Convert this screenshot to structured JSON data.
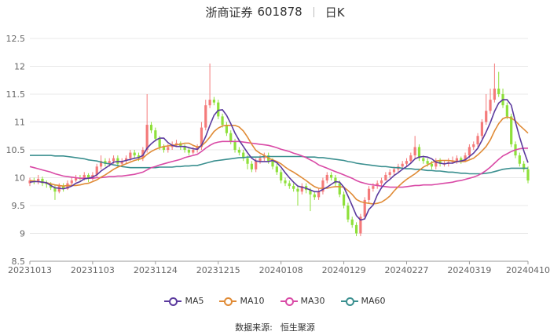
{
  "header": {
    "name": "浙商证券",
    "code": "601878",
    "period": "日K"
  },
  "legend": [
    {
      "label": "MA5",
      "color": "#5b3a9e"
    },
    {
      "label": "MA10",
      "color": "#e08b36"
    },
    {
      "label": "MA30",
      "color": "#d94aa6"
    },
    {
      "label": "MA60",
      "color": "#3a8f8f"
    }
  ],
  "source": {
    "label": "数据来源:",
    "value": "恒生聚源"
  },
  "colors": {
    "up": "#f47a7a",
    "down": "#8ee03a",
    "grid": "#e8e8e8",
    "axis": "#666666"
  },
  "chart_data": {
    "type": "candlestick",
    "ylim": [
      8.5,
      12.5
    ],
    "y_ticks": [
      8.5,
      9,
      9.5,
      10,
      10.5,
      11,
      11.5,
      12,
      12.5
    ],
    "x_ticks": [
      {
        "index": 0,
        "label": "20231013"
      },
      {
        "index": 15,
        "label": "20231103"
      },
      {
        "index": 30,
        "label": "20231124"
      },
      {
        "index": 45,
        "label": "20231215"
      },
      {
        "index": 60,
        "label": "20240108"
      },
      {
        "index": 75,
        "label": "20240129"
      },
      {
        "index": 90,
        "label": "20240227"
      },
      {
        "index": 105,
        "label": "20240319"
      },
      {
        "index": 119,
        "label": "20240410"
      }
    ],
    "num_points": 120,
    "closes": [
      9.95,
      9.92,
      9.98,
      9.9,
      9.88,
      9.82,
      9.75,
      9.85,
      9.8,
      9.9,
      9.95,
      10.0,
      9.98,
      10.05,
      9.98,
      10.05,
      10.2,
      10.3,
      10.25,
      10.3,
      10.35,
      10.25,
      10.3,
      10.35,
      10.45,
      10.4,
      10.35,
      10.5,
      10.95,
      10.85,
      10.7,
      10.55,
      10.5,
      10.55,
      10.6,
      10.62,
      10.55,
      10.5,
      10.45,
      10.5,
      10.55,
      10.9,
      11.3,
      11.4,
      11.35,
      11.1,
      10.95,
      10.8,
      10.65,
      10.5,
      10.45,
      10.35,
      10.25,
      10.15,
      10.3,
      10.35,
      10.4,
      10.3,
      10.2,
      10.1,
      9.95,
      9.9,
      9.85,
      9.8,
      9.75,
      9.85,
      9.78,
      9.7,
      9.65,
      9.75,
      9.95,
      10.05,
      10.0,
      9.9,
      9.7,
      9.5,
      9.25,
      9.15,
      9.0,
      9.3,
      9.6,
      9.8,
      9.85,
      9.9,
      9.95,
      10.05,
      10.1,
      10.15,
      10.2,
      10.25,
      10.3,
      10.4,
      10.55,
      10.35,
      10.3,
      10.25,
      10.2,
      10.3,
      10.25,
      10.25,
      10.28,
      10.3,
      10.35,
      10.3,
      10.4,
      10.55,
      10.6,
      10.75,
      11.0,
      11.2,
      11.4,
      11.6,
      11.5,
      11.3,
      11.1,
      10.6,
      10.4,
      10.25,
      10.15,
      9.95
    ],
    "opens": [
      9.9,
      9.95,
      9.92,
      9.98,
      9.9,
      9.88,
      9.82,
      9.75,
      9.85,
      9.8,
      9.9,
      9.95,
      10.0,
      9.98,
      10.05,
      9.98,
      10.05,
      10.2,
      10.3,
      10.25,
      10.3,
      10.35,
      10.25,
      10.3,
      10.35,
      10.45,
      10.4,
      10.35,
      10.5,
      10.95,
      10.85,
      10.7,
      10.55,
      10.5,
      10.55,
      10.6,
      10.62,
      10.55,
      10.5,
      10.45,
      10.5,
      10.55,
      10.9,
      11.3,
      11.4,
      11.35,
      11.1,
      10.95,
      10.8,
      10.65,
      10.5,
      10.45,
      10.35,
      10.25,
      10.15,
      10.3,
      10.35,
      10.4,
      10.3,
      10.2,
      10.1,
      9.95,
      9.9,
      9.85,
      9.8,
      9.75,
      9.85,
      9.78,
      9.7,
      9.65,
      9.75,
      9.95,
      10.05,
      10.0,
      9.9,
      9.7,
      9.5,
      9.25,
      9.15,
      9.0,
      9.3,
      9.6,
      9.8,
      9.85,
      9.9,
      9.95,
      10.05,
      10.1,
      10.15,
      10.2,
      10.25,
      10.3,
      10.4,
      10.55,
      10.35,
      10.3,
      10.25,
      10.2,
      10.3,
      10.25,
      10.25,
      10.28,
      10.3,
      10.35,
      10.3,
      10.4,
      10.55,
      10.6,
      10.75,
      11.0,
      11.2,
      11.4,
      11.6,
      11.5,
      11.3,
      11.1,
      10.6,
      10.4,
      10.25,
      10.15
    ],
    "highs": [
      10.0,
      10.0,
      10.05,
      10.02,
      9.95,
      9.92,
      9.88,
      9.9,
      9.9,
      9.95,
      10.0,
      10.05,
      10.05,
      10.1,
      10.08,
      10.1,
      10.25,
      10.4,
      10.35,
      10.35,
      10.4,
      10.4,
      10.35,
      10.4,
      10.5,
      10.5,
      10.45,
      10.55,
      11.5,
      11.0,
      10.9,
      10.75,
      10.6,
      10.6,
      10.65,
      10.68,
      10.65,
      10.6,
      10.55,
      10.55,
      10.6,
      11.0,
      11.4,
      12.05,
      11.45,
      11.4,
      11.15,
      11.0,
      10.85,
      10.7,
      10.55,
      10.5,
      10.4,
      10.3,
      10.35,
      10.4,
      10.45,
      10.45,
      10.35,
      10.25,
      10.15,
      10.0,
      9.95,
      9.9,
      9.85,
      9.9,
      9.9,
      9.82,
      9.75,
      9.8,
      10.0,
      10.1,
      10.1,
      10.05,
      9.95,
      9.75,
      9.55,
      9.3,
      9.2,
      9.35,
      9.65,
      9.85,
      9.9,
      9.95,
      10.0,
      10.1,
      10.15,
      10.2,
      10.25,
      10.3,
      10.35,
      10.45,
      10.75,
      10.6,
      10.4,
      10.35,
      10.3,
      10.35,
      10.35,
      10.3,
      10.35,
      10.38,
      10.4,
      10.38,
      10.45,
      10.6,
      10.65,
      10.8,
      11.05,
      11.5,
      11.6,
      12.05,
      11.9,
      11.6,
      11.35,
      11.15,
      10.65,
      10.45,
      10.3,
      10.2
    ],
    "lows": [
      9.85,
      9.88,
      9.88,
      9.85,
      9.82,
      9.78,
      9.6,
      9.72,
      9.75,
      9.78,
      9.85,
      9.92,
      9.95,
      9.95,
      9.92,
      9.95,
      10.0,
      10.15,
      10.2,
      10.2,
      10.25,
      10.2,
      10.2,
      10.25,
      10.3,
      10.35,
      10.3,
      10.3,
      10.45,
      10.8,
      10.65,
      10.5,
      10.45,
      10.45,
      10.5,
      10.55,
      10.5,
      10.45,
      10.4,
      10.42,
      10.45,
      10.5,
      10.85,
      11.25,
      11.3,
      11.05,
      10.9,
      10.75,
      10.6,
      10.45,
      10.4,
      10.3,
      10.15,
      10.1,
      10.1,
      10.25,
      10.3,
      10.25,
      10.15,
      10.05,
      9.9,
      9.85,
      9.8,
      9.75,
      9.5,
      9.7,
      9.72,
      9.4,
      9.6,
      9.6,
      9.7,
      9.9,
      9.95,
      9.85,
      9.65,
      9.45,
      9.2,
      9.1,
      8.95,
      8.95,
      9.25,
      9.55,
      9.75,
      9.8,
      9.85,
      9.95,
      10.0,
      10.05,
      10.1,
      10.15,
      10.2,
      10.25,
      10.35,
      10.3,
      10.25,
      10.2,
      10.15,
      10.15,
      10.2,
      10.2,
      10.2,
      10.25,
      10.25,
      10.25,
      10.3,
      10.35,
      10.5,
      10.55,
      10.7,
      10.95,
      11.15,
      11.35,
      11.45,
      11.25,
      11.05,
      10.55,
      10.35,
      10.2,
      10.1,
      9.9
    ],
    "ma5": [
      9.92,
      9.93,
      9.93,
      9.92,
      9.91,
      9.86,
      9.82,
      9.81,
      9.8,
      9.82,
      9.85,
      9.9,
      9.93,
      9.98,
      9.99,
      10.01,
      10.05,
      10.12,
      10.17,
      10.22,
      10.28,
      10.29,
      10.29,
      10.31,
      10.33,
      10.35,
      10.36,
      10.4,
      10.53,
      10.61,
      10.67,
      10.71,
      10.71,
      10.63,
      10.58,
      10.56,
      10.56,
      10.56,
      10.54,
      10.52,
      10.51,
      10.58,
      10.74,
      10.94,
      11.12,
      11.21,
      11.22,
      11.12,
      10.97,
      10.8,
      10.67,
      10.56,
      10.45,
      10.35,
      10.3,
      10.29,
      10.29,
      10.29,
      10.31,
      10.27,
      10.19,
      10.09,
      10.0,
      9.92,
      9.85,
      9.83,
      9.81,
      9.78,
      9.75,
      9.75,
      9.79,
      9.83,
      9.88,
      9.93,
      9.92,
      9.83,
      9.67,
      9.5,
      9.32,
      9.24,
      9.26,
      9.43,
      9.51,
      9.69,
      9.82,
      9.91,
      9.97,
      10.04,
      10.09,
      10.15,
      10.2,
      10.26,
      10.34,
      10.37,
      10.38,
      10.37,
      10.34,
      10.28,
      10.26,
      10.25,
      10.26,
      10.26,
      10.29,
      10.3,
      10.32,
      10.38,
      10.44,
      10.53,
      10.67,
      10.82,
      10.99,
      11.19,
      11.34,
      11.4,
      11.4,
      11.3,
      11.0,
      10.73,
      10.48,
      10.27
    ],
    "ma10": [
      9.95,
      9.94,
      9.93,
      9.92,
      9.91,
      9.89,
      9.87,
      9.86,
      9.85,
      9.86,
      9.86,
      9.86,
      9.87,
      9.89,
      9.9,
      9.93,
      9.96,
      10.01,
      10.05,
      10.1,
      10.15,
      10.19,
      10.22,
      10.25,
      10.28,
      10.31,
      10.33,
      10.35,
      10.42,
      10.47,
      10.51,
      10.54,
      10.56,
      10.57,
      10.58,
      10.59,
      10.6,
      10.62,
      10.62,
      10.58,
      10.55,
      10.57,
      10.64,
      10.73,
      10.83,
      10.89,
      10.93,
      10.94,
      10.94,
      10.94,
      10.91,
      10.84,
      10.73,
      10.6,
      10.49,
      10.44,
      10.4,
      10.35,
      10.32,
      10.29,
      10.25,
      10.19,
      10.14,
      10.1,
      10.05,
      10.0,
      9.95,
      9.89,
      9.84,
      9.81,
      9.81,
      9.81,
      9.83,
      9.84,
      9.84,
      9.83,
      9.77,
      9.7,
      9.61,
      9.57,
      9.55,
      9.54,
      9.53,
      9.54,
      9.56,
      9.61,
      9.67,
      9.76,
      9.84,
      9.91,
      9.97,
      10.02,
      10.07,
      10.13,
      10.19,
      10.23,
      10.27,
      10.3,
      10.31,
      10.31,
      10.31,
      10.3,
      10.29,
      10.29,
      10.29,
      10.32,
      10.35,
      10.41,
      10.48,
      10.56,
      10.68,
      10.84,
      10.97,
      11.06,
      11.09,
      11.07,
      11.02,
      10.94,
      10.87,
      10.8
    ],
    "ma30": [
      10.2,
      10.18,
      10.16,
      10.14,
      10.12,
      10.1,
      10.07,
      10.05,
      10.03,
      10.02,
      10.01,
      10.0,
      9.99,
      9.99,
      9.99,
      9.99,
      10.0,
      10.0,
      10.01,
      10.02,
      10.02,
      10.03,
      10.03,
      10.04,
      10.05,
      10.06,
      10.08,
      10.1,
      10.14,
      10.18,
      10.2,
      10.23,
      10.25,
      10.27,
      10.29,
      10.31,
      10.33,
      10.36,
      10.38,
      10.4,
      10.42,
      10.47,
      10.53,
      10.58,
      10.62,
      10.64,
      10.65,
      10.65,
      10.65,
      10.65,
      10.65,
      10.64,
      10.63,
      10.62,
      10.61,
      10.6,
      10.59,
      10.58,
      10.56,
      10.54,
      10.51,
      10.49,
      10.47,
      10.44,
      10.42,
      10.39,
      10.36,
      10.32,
      10.28,
      10.23,
      10.2,
      10.17,
      10.14,
      10.11,
      10.08,
      10.05,
      10.02,
      9.99,
      9.95,
      9.92,
      9.9,
      9.88,
      9.87,
      9.86,
      9.85,
      9.84,
      9.83,
      9.83,
      9.83,
      9.83,
      9.84,
      9.85,
      9.86,
      9.86,
      9.87,
      9.87,
      9.87,
      9.88,
      9.89,
      9.9,
      9.91,
      9.92,
      9.94,
      9.95,
      9.97,
      9.99,
      10.01,
      10.04,
      10.08,
      10.13,
      10.19,
      10.26,
      10.33,
      10.39,
      10.43,
      10.47,
      10.5,
      10.52,
      10.53,
      10.53
    ],
    "ma60": [
      10.4,
      10.4,
      10.4,
      10.4,
      10.4,
      10.4,
      10.39,
      10.39,
      10.39,
      10.38,
      10.37,
      10.36,
      10.35,
      10.34,
      10.32,
      10.31,
      10.3,
      10.28,
      10.26,
      10.25,
      10.23,
      10.22,
      10.2,
      10.19,
      10.18,
      10.18,
      10.18,
      10.18,
      10.18,
      10.18,
      10.18,
      10.19,
      10.19,
      10.19,
      10.19,
      10.2,
      10.2,
      10.21,
      10.21,
      10.22,
      10.22,
      10.24,
      10.26,
      10.28,
      10.3,
      10.31,
      10.32,
      10.33,
      10.34,
      10.35,
      10.36,
      10.36,
      10.37,
      10.37,
      10.37,
      10.37,
      10.38,
      10.38,
      10.38,
      10.38,
      10.38,
      10.38,
      10.38,
      10.38,
      10.38,
      10.38,
      10.37,
      10.37,
      10.37,
      10.36,
      10.36,
      10.35,
      10.34,
      10.33,
      10.32,
      10.31,
      10.29,
      10.28,
      10.26,
      10.25,
      10.24,
      10.23,
      10.22,
      10.21,
      10.2,
      10.2,
      10.19,
      10.18,
      10.18,
      10.17,
      10.16,
      10.16,
      10.15,
      10.15,
      10.14,
      10.13,
      10.13,
      10.12,
      10.12,
      10.11,
      10.1,
      10.1,
      10.09,
      10.08,
      10.08,
      10.07,
      10.07,
      10.07,
      10.07,
      10.08,
      10.09,
      10.11,
      10.13,
      10.15,
      10.16,
      10.17,
      10.17,
      10.17,
      10.17,
      10.17
    ],
    "grid": true,
    "legend_position": "bottom"
  }
}
